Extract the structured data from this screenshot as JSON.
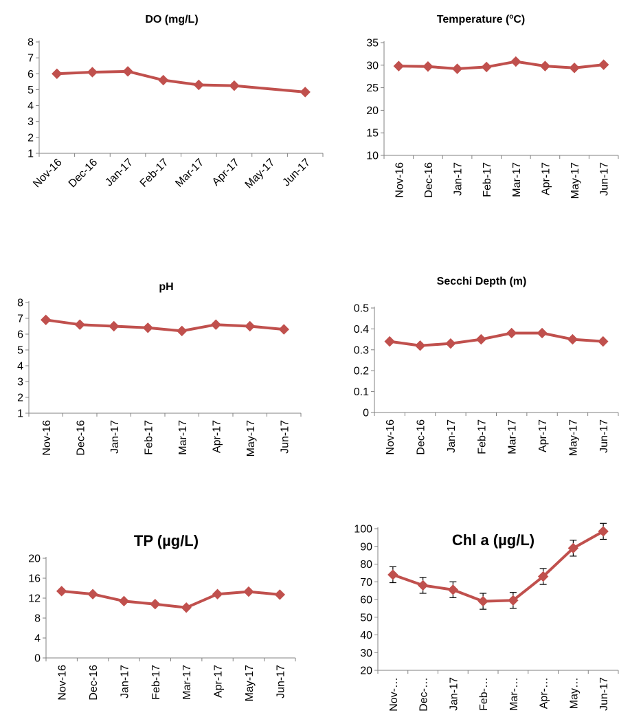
{
  "colors": {
    "series": "#C0504D",
    "axis": "#808080",
    "text": "#000000"
  },
  "chart_data": [
    {
      "type": "line",
      "title": "DO (mg/L)",
      "categories": [
        "Nov-16",
        "Dec-16",
        "Jan-17",
        "Feb-17",
        "Mar-17",
        "Apr-17",
        "May-17",
        "Jun-17"
      ],
      "values": [
        6.0,
        6.1,
        6.15,
        5.6,
        5.3,
        5.25,
        null,
        4.85
      ],
      "ylim": [
        1,
        8
      ],
      "yticks": [
        1,
        2,
        3,
        4,
        5,
        6,
        7,
        8
      ],
      "label_rotation": "diagonal",
      "grid": false,
      "legend": "none"
    },
    {
      "type": "line",
      "title_parts": [
        "Temperature (",
        "o",
        "C)"
      ],
      "categories": [
        "Nov-16",
        "Dec-16",
        "Jan-17",
        "Feb-17",
        "Mar-17",
        "Apr-17",
        "May-17",
        "Jun-17"
      ],
      "values": [
        29.8,
        29.7,
        29.2,
        29.6,
        30.8,
        29.8,
        29.4,
        30.1
      ],
      "ylim": [
        10,
        35
      ],
      "yticks": [
        10,
        15,
        20,
        25,
        30,
        35
      ],
      "label_rotation": "vertical",
      "grid": false,
      "legend": "none"
    },
    {
      "type": "line",
      "title": "pH",
      "categories": [
        "Nov-16",
        "Dec-16",
        "Jan-17",
        "Feb-17",
        "Mar-17",
        "Apr-17",
        "May-17",
        "Jun-17"
      ],
      "values": [
        6.9,
        6.6,
        6.5,
        6.4,
        6.2,
        6.6,
        6.5,
        6.3
      ],
      "ylim": [
        1,
        8
      ],
      "yticks": [
        1,
        2,
        3,
        4,
        5,
        6,
        7,
        8
      ],
      "label_rotation": "vertical",
      "grid": false,
      "legend": "none"
    },
    {
      "type": "line",
      "title": "Secchi Depth (m)",
      "categories": [
        "Nov-16",
        "Dec-16",
        "Jan-17",
        "Feb-17",
        "Mar-17",
        "Apr-17",
        "May-17",
        "Jun-17"
      ],
      "values": [
        0.34,
        0.32,
        0.33,
        0.35,
        0.38,
        0.38,
        0.35,
        0.34
      ],
      "ylim": [
        0,
        0.5
      ],
      "yticks": [
        0,
        0.1,
        0.2,
        0.3,
        0.4,
        0.5
      ],
      "label_rotation": "vertical",
      "grid": false,
      "legend": "none"
    },
    {
      "type": "line",
      "title": "TP (µg/L)",
      "categories": [
        "Nov-16",
        "Dec-16",
        "Jan-17",
        "Feb-17",
        "Mar-17",
        "Apr-17",
        "May-17",
        "Jun-17"
      ],
      "values": [
        13.4,
        12.8,
        11.4,
        10.8,
        10.1,
        12.8,
        13.3,
        12.7
      ],
      "ylim": [
        0,
        20
      ],
      "yticks": [
        0,
        4,
        8,
        12,
        16,
        20
      ],
      "label_rotation": "vertical",
      "grid": false,
      "legend": "none"
    },
    {
      "type": "line",
      "title": "Chl a (µg/L)",
      "categories": [
        "Nov-…",
        "Dec-…",
        "Jan-17",
        "Feb-…",
        "Mar-…",
        "Apr-…",
        "May…",
        "Jun-17"
      ],
      "values": [
        74,
        68,
        65.5,
        59,
        59.5,
        73,
        89,
        98.5
      ],
      "error": [
        4.5,
        4.5,
        4.5,
        4.5,
        4.5,
        4.5,
        4.5,
        4.5
      ],
      "ylim": [
        20,
        100
      ],
      "yticks": [
        20,
        30,
        40,
        50,
        60,
        70,
        80,
        90,
        100
      ],
      "label_rotation": "vertical",
      "grid": false,
      "legend": "none"
    }
  ]
}
